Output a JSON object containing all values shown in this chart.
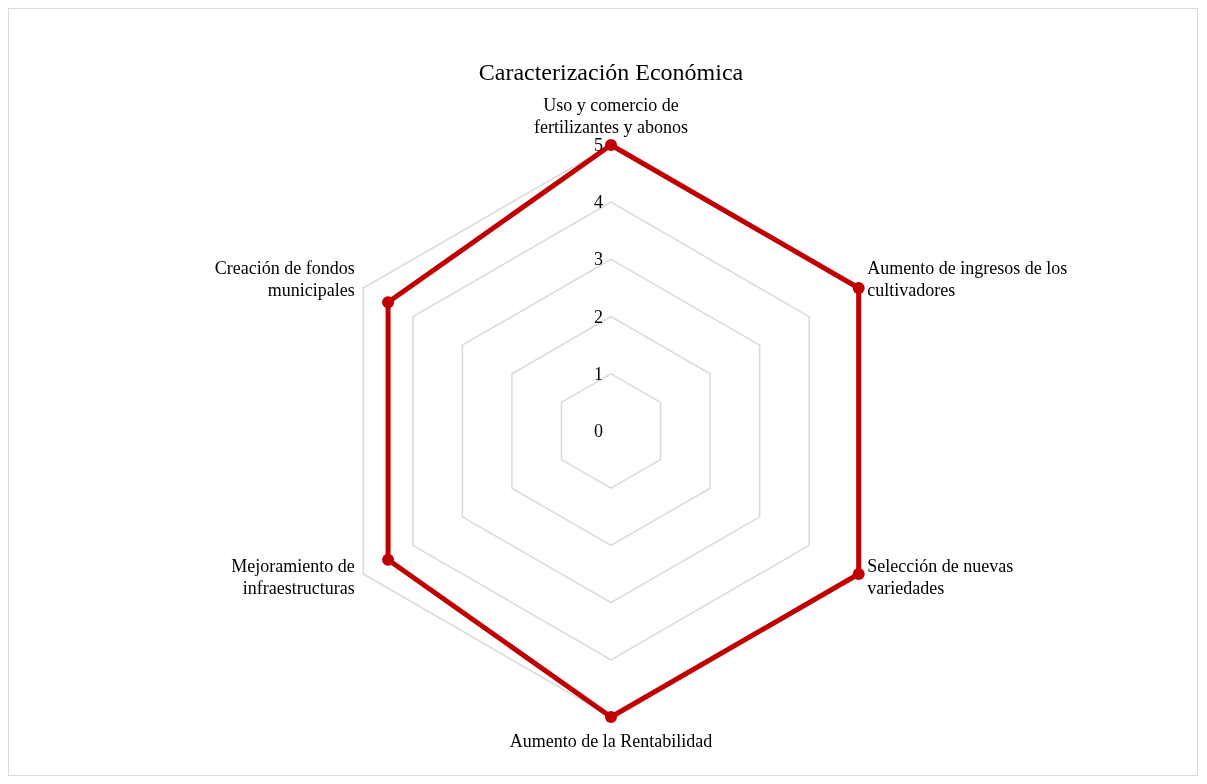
{
  "chart_data": {
    "type": "radar",
    "title": "Caracterización Económica",
    "categories": [
      "Uso y comercio de fertilizantes y abonos",
      "Aumento de ingresos de los cultivadores",
      "Selección de nuevas variedades",
      "Aumento de la Rentabilidad",
      "Mejoramiento de infraestructuras",
      "Creación de fondos municipales"
    ],
    "series": [
      {
        "color": "#c00000",
        "values": [
          5,
          5,
          5,
          5,
          4.5,
          4.5
        ]
      }
    ],
    "ylim": [
      0,
      5
    ],
    "yticks": [
      0,
      1,
      2,
      3,
      4,
      5
    ],
    "grid": true,
    "marker": "circle"
  }
}
